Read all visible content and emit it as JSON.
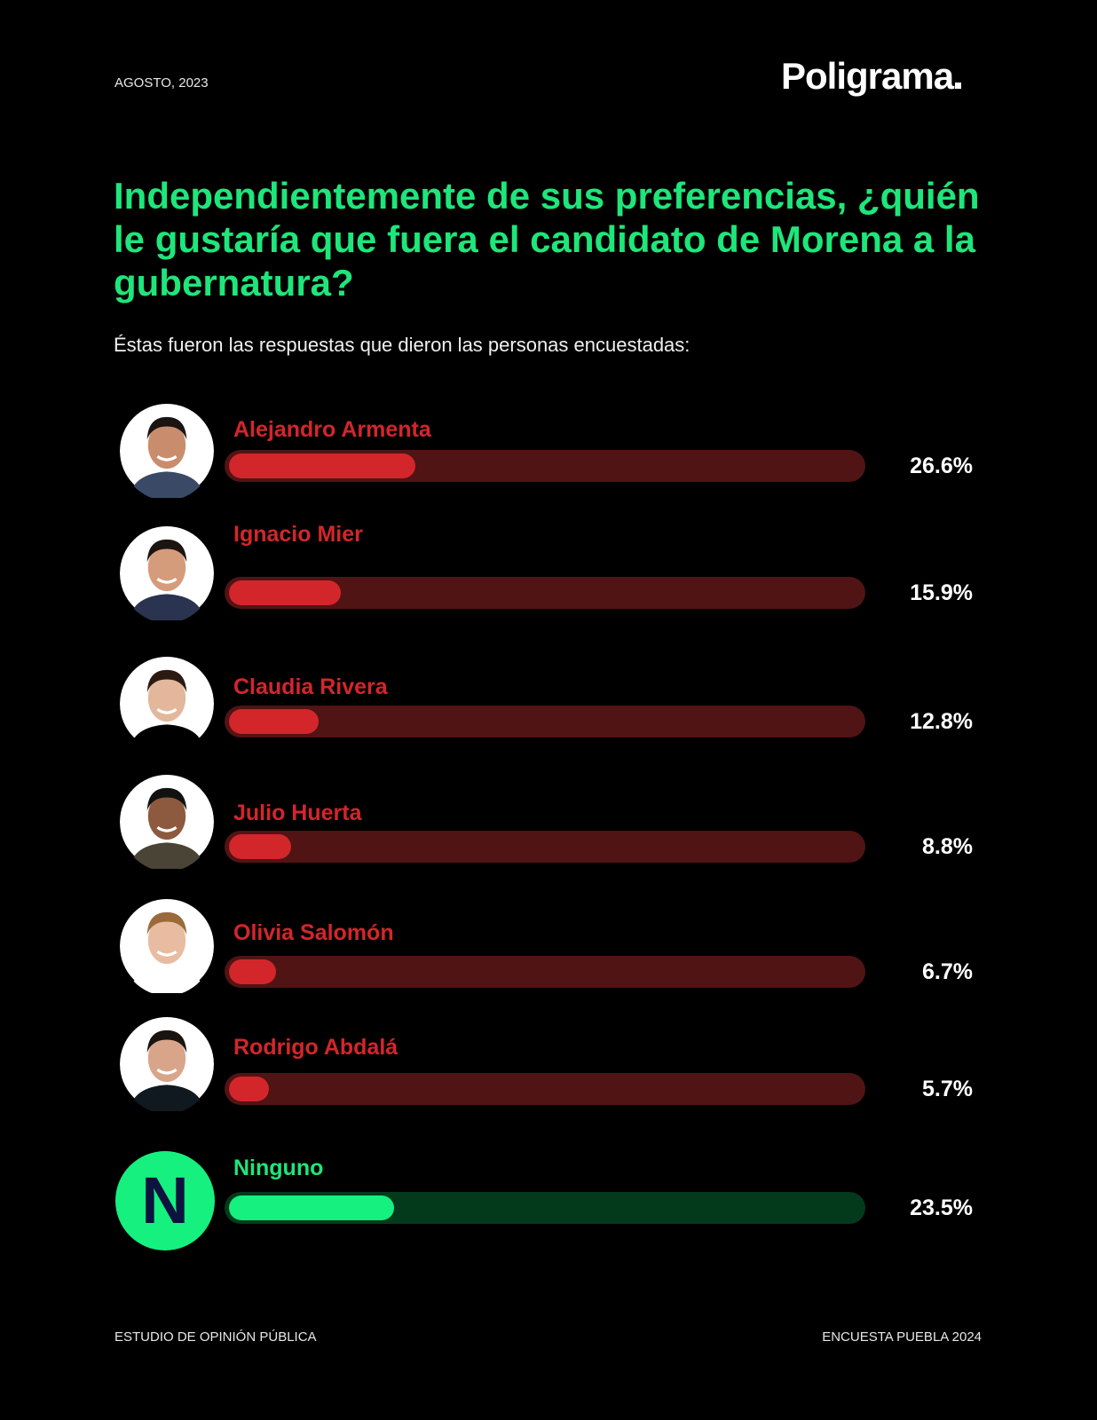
{
  "header": {
    "date": "AGOSTO, 2023",
    "logo": "Poligrama"
  },
  "title": "Independientemente de sus preferencias, ¿quién le gustaría que fuera el candidato de Morena a la gubernatura?",
  "subtitle": "Éstas fueron las respuestas que dieron las personas encuestadas:",
  "chart_data": {
    "type": "bar",
    "orientation": "horizontal",
    "categories": [
      "Alejandro Armenta",
      "Ignacio Mier",
      "Claudia Rivera",
      "Julio Huerta",
      "Olivia Salomón",
      "Rodrigo Abdalá",
      "Ninguno"
    ],
    "values": [
      26.6,
      15.9,
      12.8,
      8.8,
      6.7,
      5.7,
      23.5
    ],
    "labels": [
      "26.6%",
      "15.9%",
      "12.8%",
      "8.8%",
      "6.7%",
      "5.7%",
      "23.5%"
    ],
    "unit": "%",
    "colors": {
      "candidate_fill": "#d3262b",
      "candidate_track": "#511414",
      "none_fill": "#15f07f",
      "none_track": "#033a1c",
      "title": "#1ee67a"
    },
    "ninguno_badge": "N"
  },
  "footer": {
    "left": "ESTUDIO  DE OPINIÓN PÚBLICA",
    "right": "ENCUESTA PUEBLA 2024"
  }
}
